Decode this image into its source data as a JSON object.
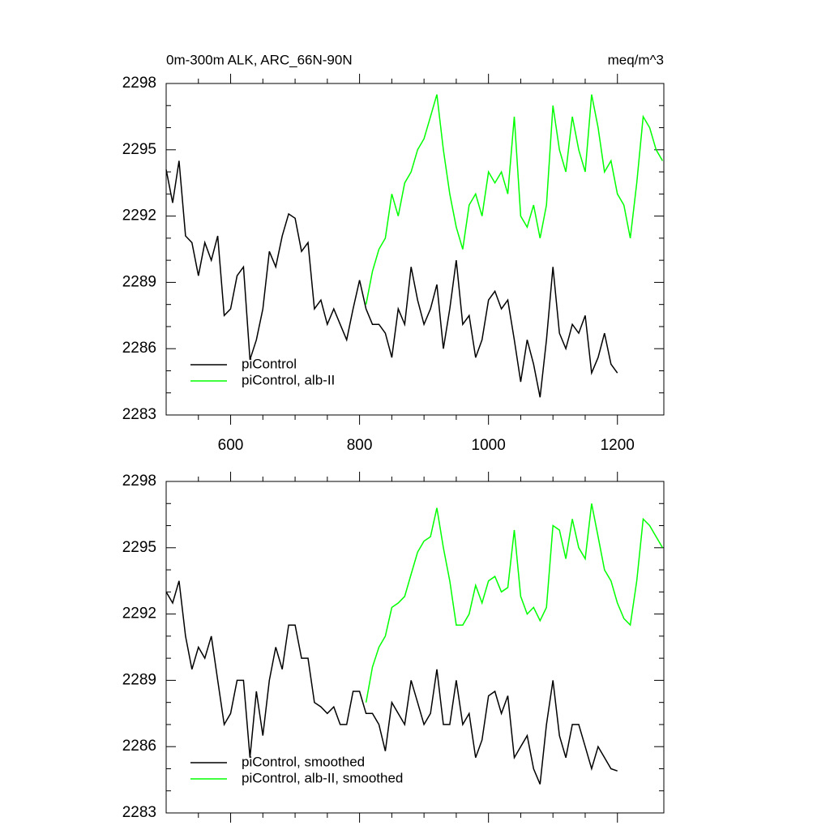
{
  "chart_data": [
    {
      "type": "line",
      "title": "0m-300m ALK, ARC_66N-90N",
      "units": "meq/m^3",
      "x": [
        500,
        510,
        520,
        530,
        540,
        550,
        560,
        570,
        580,
        590,
        600,
        610,
        620,
        630,
        640,
        650,
        660,
        670,
        680,
        690,
        700,
        710,
        720,
        730,
        740,
        750,
        760,
        770,
        780,
        790,
        800,
        810,
        820,
        830,
        840,
        850,
        860,
        870,
        880,
        890,
        900,
        910,
        920,
        930,
        940,
        950,
        960,
        970,
        980,
        990,
        1000,
        1010,
        1020,
        1030,
        1040,
        1050,
        1060,
        1070,
        1080,
        1090,
        1100,
        1110,
        1120,
        1130,
        1140,
        1150,
        1160,
        1170,
        1180,
        1190,
        1200,
        1210,
        1220,
        1230,
        1240,
        1250,
        1260,
        1270
      ],
      "series": [
        {
          "name": "piControl",
          "color": "#000000",
          "values": [
            2294.1,
            2292.6,
            2294.5,
            2291.1,
            2290.8,
            2289.3,
            2290.8,
            2290,
            2291.1,
            2287.5,
            2287.8,
            2289.3,
            2289.7,
            2285.5,
            2286.4,
            2287.8,
            2290.4,
            2289.7,
            2291.1,
            2292.1,
            2291.9,
            2290.4,
            2290.8,
            2287.8,
            2288.2,
            2287.1,
            2287.8,
            2287.1,
            2286.4,
            2287.8,
            2289.1,
            2287.8,
            2287.1,
            2287.1,
            2286.7,
            2285.6,
            2287.8,
            2287.1,
            2289.7,
            2288.2,
            2287.1,
            2287.8,
            2288.9,
            2286,
            2287.8,
            2290,
            2287.1,
            2287.5,
            2285.6,
            2286.4,
            2288.2,
            2288.6,
            2287.8,
            2288.2,
            2286.4,
            2284.5,
            2286.4,
            2285.3,
            2283.8,
            2286.4,
            2289.7,
            2286.7,
            2286,
            2287.1,
            2286.7,
            2287.5,
            2284.9,
            2285.6,
            2286.7,
            2285.3,
            2284.9,
            null,
            null,
            null,
            null,
            null,
            null,
            null
          ]
        },
        {
          "name": "piControl, alb-II",
          "color": "#00ff00",
          "values": [
            null,
            null,
            null,
            null,
            null,
            null,
            null,
            null,
            null,
            null,
            null,
            null,
            null,
            null,
            null,
            null,
            null,
            null,
            null,
            null,
            null,
            null,
            null,
            null,
            null,
            null,
            null,
            null,
            null,
            null,
            null,
            2288,
            2289.5,
            2290.5,
            2291,
            2293,
            2292,
            2293.5,
            2294,
            2295,
            2295.5,
            2296.5,
            2297.5,
            2295,
            2293,
            2291.5,
            2290.5,
            2292.5,
            2293,
            2292,
            2294,
            2293.5,
            2294,
            2293,
            2296.5,
            2292,
            2291.5,
            2292.5,
            2291,
            2292.5,
            2297,
            2295,
            2294,
            2296.5,
            2295,
            2294,
            2297.5,
            2296,
            2294,
            2294.5,
            2293,
            2292.5,
            2291,
            2293.5,
            2296.5,
            2296,
            2295,
            2294.5
          ]
        }
      ],
      "xlim": [
        500,
        1272
      ],
      "xticks": [
        600,
        800,
        1000,
        1200
      ],
      "ylim": [
        2283,
        2298
      ],
      "yticks": [
        2283,
        2286,
        2289,
        2292,
        2295,
        2298
      ],
      "legend": "lower left"
    },
    {
      "type": "line",
      "x": [
        500,
        510,
        520,
        530,
        540,
        550,
        560,
        570,
        580,
        590,
        600,
        610,
        620,
        630,
        640,
        650,
        660,
        670,
        680,
        690,
        700,
        710,
        720,
        730,
        740,
        750,
        760,
        770,
        780,
        790,
        800,
        810,
        820,
        830,
        840,
        850,
        860,
        870,
        880,
        890,
        900,
        910,
        920,
        930,
        940,
        950,
        960,
        970,
        980,
        990,
        1000,
        1010,
        1020,
        1030,
        1040,
        1050,
        1060,
        1070,
        1080,
        1090,
        1100,
        1110,
        1120,
        1130,
        1140,
        1150,
        1160,
        1170,
        1180,
        1190,
        1200,
        1210,
        1220,
        1230,
        1240,
        1250,
        1260,
        1270
      ],
      "series": [
        {
          "name": "piControl, smoothed",
          "color": "#000000",
          "values": [
            2293,
            2292.5,
            2293.5,
            2291,
            2289.5,
            2290.5,
            2290,
            2291,
            2289,
            2287,
            2287.5,
            2289,
            2289,
            2285.5,
            2288.5,
            2286.5,
            2289,
            2290.5,
            2289.5,
            2291.5,
            2291.5,
            2290,
            2290,
            2288,
            2287.8,
            2287.5,
            2287.8,
            2287,
            2287,
            2288.5,
            2288.5,
            2287.5,
            2287.5,
            2287,
            2285.8,
            2288,
            2287.5,
            2287,
            2289,
            2288,
            2287,
            2287.5,
            2289.5,
            2287,
            2287,
            2289,
            2287,
            2287.5,
            2285.5,
            2286.3,
            2288.3,
            2288.5,
            2287.5,
            2288.3,
            2285.5,
            2286,
            2286.5,
            2285,
            2284.3,
            2287,
            2289,
            2286.5,
            2285.5,
            2287,
            2287,
            2286,
            2285,
            2286,
            2285.5,
            2285,
            2284.9,
            null,
            null,
            null,
            null,
            null,
            null,
            null
          ]
        },
        {
          "name": "piControl, alb-II, smoothed",
          "color": "#00ff00",
          "values": [
            null,
            null,
            null,
            null,
            null,
            null,
            null,
            null,
            null,
            null,
            null,
            null,
            null,
            null,
            null,
            null,
            null,
            null,
            null,
            null,
            null,
            null,
            null,
            null,
            null,
            null,
            null,
            null,
            null,
            null,
            null,
            2288,
            2289.6,
            2290.5,
            2291,
            2292.3,
            2292.5,
            2292.8,
            2293.8,
            2294.8,
            2295.3,
            2295.5,
            2296.8,
            2295,
            2293.5,
            2291.5,
            2291.5,
            2292,
            2293.3,
            2292.5,
            2293.5,
            2293.7,
            2293,
            2293.2,
            2295.8,
            2292.8,
            2292,
            2292.3,
            2291.7,
            2292.3,
            2296,
            2295.8,
            2294.5,
            2296.3,
            2295,
            2294.5,
            2297,
            2295.5,
            2294,
            2293.5,
            2292.5,
            2291.8,
            2291.5,
            2293.5,
            2296.3,
            2296,
            2295.5,
            2295
          ]
        }
      ],
      "xlim": [
        500,
        1272
      ],
      "ylim": [
        2283,
        2298
      ],
      "yticks": [
        2283,
        2286,
        2289,
        2292,
        2295,
        2298
      ],
      "legend": "lower left"
    }
  ]
}
